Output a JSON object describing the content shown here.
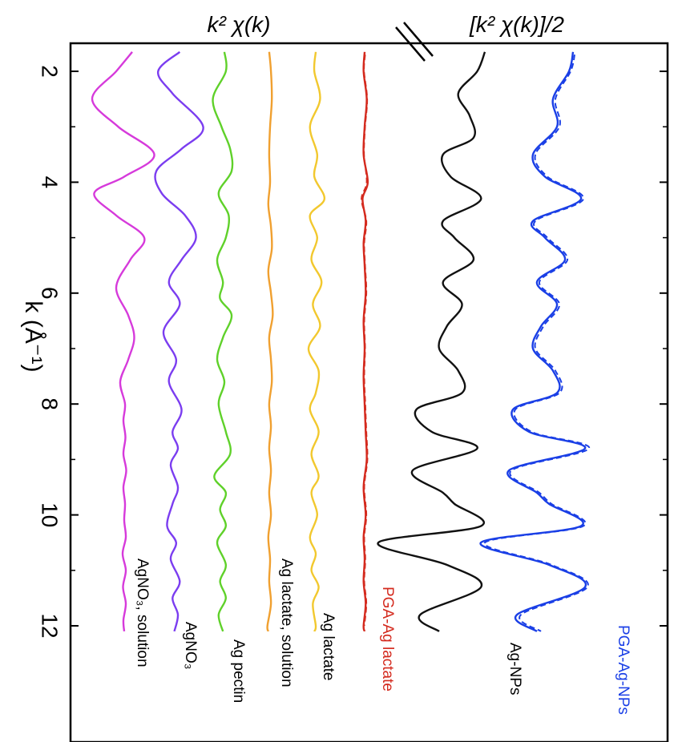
{
  "chart_data": {
    "type": "line",
    "orientation": "vertical-stacked",
    "titles": {
      "left": "k² χ(k)",
      "right": "[k² χ(k)]/2"
    },
    "axis": {
      "label": "k (Å⁻¹)",
      "ticks": [
        "2",
        "4",
        "6",
        "8",
        "10",
        "12"
      ],
      "range": [
        1.5,
        14.2
      ]
    },
    "series": [
      {
        "name": "AgNO₃, solution",
        "color": "#d63adb",
        "solid": [
          [
            1.65,
            0.1
          ],
          [
            2.0,
            -0.3
          ],
          [
            2.5,
            -0.9
          ],
          [
            3.0,
            -0.25
          ],
          [
            3.5,
            0.65
          ],
          [
            3.9,
            -0.1
          ],
          [
            4.2,
            -0.85
          ],
          [
            4.6,
            -0.3
          ],
          [
            5.0,
            0.4
          ],
          [
            5.4,
            0.05
          ],
          [
            5.9,
            -0.3
          ],
          [
            6.4,
            0.0
          ],
          [
            6.8,
            0.15
          ],
          [
            7.2,
            0.0
          ],
          [
            7.6,
            -0.2
          ],
          [
            8.0,
            -0.08
          ],
          [
            8.3,
            -0.12
          ],
          [
            8.6,
            -0.07
          ],
          [
            8.9,
            -0.12
          ],
          [
            9.2,
            -0.05
          ],
          [
            9.5,
            -0.12
          ],
          [
            9.8,
            -0.08
          ],
          [
            10.1,
            -0.1
          ],
          [
            10.4,
            -0.06
          ],
          [
            10.7,
            -0.14
          ],
          [
            11.0,
            -0.06
          ],
          [
            11.3,
            -0.13
          ],
          [
            11.6,
            -0.06
          ],
          [
            11.9,
            -0.12
          ],
          [
            12.1,
            -0.1
          ]
        ]
      },
      {
        "name": "AgNO₃",
        "color": "#7b3df0",
        "solid": [
          [
            1.65,
            0.05
          ],
          [
            2.0,
            -0.55
          ],
          [
            2.4,
            -0.15
          ],
          [
            3.0,
            0.7
          ],
          [
            3.4,
            0.1
          ],
          [
            3.8,
            -0.6
          ],
          [
            4.2,
            -0.45
          ],
          [
            4.6,
            0.2
          ],
          [
            5.0,
            0.5
          ],
          [
            5.4,
            0.1
          ],
          [
            5.8,
            -0.25
          ],
          [
            6.2,
            0.05
          ],
          [
            6.7,
            -0.4
          ],
          [
            7.2,
            -0.05
          ],
          [
            7.6,
            -0.25
          ],
          [
            8.1,
            0.1
          ],
          [
            8.5,
            -0.15
          ],
          [
            8.8,
            0.0
          ],
          [
            9.1,
            -0.2
          ],
          [
            9.5,
            0.0
          ],
          [
            9.8,
            -0.15
          ],
          [
            10.2,
            -0.3
          ],
          [
            10.5,
            -0.05
          ],
          [
            10.8,
            -0.2
          ],
          [
            11.2,
            0.05
          ],
          [
            11.5,
            -0.15
          ],
          [
            11.8,
            0.0
          ],
          [
            12.1,
            -0.1
          ]
        ]
      },
      {
        "name": "Ag pectin",
        "color": "#5fd12a",
        "solid": [
          [
            1.65,
            0.0
          ],
          [
            2.0,
            0.05
          ],
          [
            2.5,
            -0.4
          ],
          [
            3.0,
            -0.1
          ],
          [
            3.4,
            0.2
          ],
          [
            3.8,
            0.25
          ],
          [
            4.2,
            -0.2
          ],
          [
            4.6,
            0.15
          ],
          [
            5.0,
            0.05
          ],
          [
            5.4,
            -0.25
          ],
          [
            5.8,
            -0.05
          ],
          [
            6.1,
            -0.15
          ],
          [
            6.4,
            0.25
          ],
          [
            6.8,
            -0.05
          ],
          [
            7.2,
            -0.25
          ],
          [
            7.6,
            0.0
          ],
          [
            8.0,
            -0.2
          ],
          [
            8.5,
            0.05
          ],
          [
            8.9,
            0.2
          ],
          [
            9.3,
            -0.35
          ],
          [
            9.6,
            0.05
          ],
          [
            9.9,
            -0.15
          ],
          [
            10.2,
            0.05
          ],
          [
            10.5,
            -0.25
          ],
          [
            10.9,
            0.05
          ],
          [
            11.2,
            -0.15
          ],
          [
            11.5,
            0.05
          ],
          [
            11.8,
            -0.2
          ],
          [
            12.1,
            -0.05
          ]
        ]
      },
      {
        "name": "Ag lactate, solution",
        "color": "#f0a030",
        "solid": [
          [
            1.65,
            -0.05
          ],
          [
            2.0,
            0.05
          ],
          [
            2.5,
            0.1
          ],
          [
            3.0,
            0.0
          ],
          [
            3.5,
            -0.05
          ],
          [
            4.0,
            0.0
          ],
          [
            4.4,
            -0.1
          ],
          [
            4.8,
            0.05
          ],
          [
            5.2,
            0.1
          ],
          [
            5.6,
            -0.1
          ],
          [
            6.0,
            0.05
          ],
          [
            6.4,
            0.15
          ],
          [
            6.8,
            -0.05
          ],
          [
            7.2,
            0.05
          ],
          [
            7.6,
            0.1
          ],
          [
            8.0,
            -0.05
          ],
          [
            8.4,
            0.05
          ],
          [
            8.8,
            -0.05
          ],
          [
            9.2,
            0.05
          ],
          [
            9.6,
            -0.05
          ],
          [
            10.0,
            0.05
          ],
          [
            10.4,
            -0.1
          ],
          [
            10.8,
            0.0
          ],
          [
            11.2,
            -0.05
          ],
          [
            11.6,
            0.05
          ],
          [
            12.0,
            -0.15
          ],
          [
            12.1,
            -0.1
          ]
        ]
      },
      {
        "name": "Ag lactate",
        "color": "#f2c82e",
        "solid": [
          [
            1.65,
            0.0
          ],
          [
            2.0,
            -0.05
          ],
          [
            2.5,
            0.15
          ],
          [
            3.0,
            -0.2
          ],
          [
            3.5,
            0.05
          ],
          [
            3.9,
            -0.05
          ],
          [
            4.3,
            0.3
          ],
          [
            4.6,
            -0.2
          ],
          [
            5.0,
            0.05
          ],
          [
            5.4,
            -0.15
          ],
          [
            5.8,
            0.2
          ],
          [
            6.2,
            -0.1
          ],
          [
            6.6,
            0.15
          ],
          [
            7.0,
            -0.25
          ],
          [
            7.4,
            0.1
          ],
          [
            7.8,
            0.0
          ],
          [
            8.1,
            -0.2
          ],
          [
            8.5,
            0.1
          ],
          [
            8.9,
            -0.15
          ],
          [
            9.3,
            0.1
          ],
          [
            9.6,
            -0.15
          ],
          [
            10.0,
            0.05
          ],
          [
            10.4,
            -0.2
          ],
          [
            10.7,
            0.0
          ],
          [
            11.0,
            -0.15
          ],
          [
            11.3,
            0.1
          ],
          [
            11.6,
            -0.1
          ],
          [
            12.0,
            0.0
          ],
          [
            12.1,
            -0.05
          ]
        ]
      },
      {
        "name": "PGA-Ag lactate",
        "color": "#d42a1e",
        "solid": [
          [
            1.65,
            0.0
          ],
          [
            2.0,
            -0.05
          ],
          [
            2.5,
            0.1
          ],
          [
            3.0,
            0.0
          ],
          [
            3.5,
            -0.05
          ],
          [
            4.0,
            0.15
          ],
          [
            4.3,
            -0.1
          ],
          [
            4.7,
            0.05
          ],
          [
            5.1,
            -0.05
          ],
          [
            5.5,
            0.0
          ],
          [
            6.0,
            0.05
          ],
          [
            6.5,
            -0.05
          ],
          [
            7.0,
            0.0
          ],
          [
            7.5,
            -0.05
          ],
          [
            8.0,
            0.0
          ],
          [
            8.5,
            0.05
          ],
          [
            9.0,
            0.1
          ],
          [
            9.5,
            -0.05
          ],
          [
            10.0,
            0.05
          ],
          [
            10.4,
            -0.05
          ],
          [
            10.8,
            0.0
          ],
          [
            11.2,
            -0.05
          ],
          [
            11.6,
            0.05
          ],
          [
            12.0,
            -0.05
          ],
          [
            12.1,
            0.0
          ]
        ],
        "dashed": [
          [
            1.7,
            0.02
          ],
          [
            2.0,
            -0.03
          ],
          [
            2.5,
            0.12
          ],
          [
            3.0,
            0.02
          ],
          [
            3.5,
            -0.03
          ],
          [
            4.0,
            0.1
          ],
          [
            4.3,
            -0.15
          ],
          [
            4.7,
            0.08
          ],
          [
            5.1,
            -0.02
          ],
          [
            5.5,
            0.02
          ],
          [
            6.0,
            0.08
          ],
          [
            6.5,
            -0.02
          ],
          [
            7.0,
            0.02
          ],
          [
            7.5,
            -0.02
          ],
          [
            8.0,
            0.03
          ],
          [
            8.5,
            0.08
          ],
          [
            9.0,
            0.13
          ],
          [
            9.5,
            -0.02
          ],
          [
            10.0,
            0.08
          ],
          [
            10.4,
            -0.02
          ],
          [
            10.8,
            0.03
          ],
          [
            11.2,
            -0.02
          ],
          [
            11.6,
            0.08
          ],
          [
            12.0,
            -0.02
          ]
        ]
      },
      {
        "name": "Ag-NPs",
        "color": "#111111",
        "solid": [
          [
            1.65,
            0.0
          ],
          [
            2.0,
            -0.1
          ],
          [
            2.4,
            -0.35
          ],
          [
            2.8,
            -0.2
          ],
          [
            3.2,
            -0.15
          ],
          [
            3.5,
            -0.55
          ],
          [
            3.9,
            -0.45
          ],
          [
            4.3,
            -0.05
          ],
          [
            4.7,
            -0.55
          ],
          [
            5.0,
            -0.4
          ],
          [
            5.4,
            -0.15
          ],
          [
            5.8,
            -0.55
          ],
          [
            6.2,
            -0.3
          ],
          [
            6.6,
            -0.5
          ],
          [
            7.0,
            -0.6
          ],
          [
            7.4,
            -0.35
          ],
          [
            7.8,
            -0.3
          ],
          [
            8.1,
            -0.9
          ],
          [
            8.5,
            -0.7
          ],
          [
            8.8,
            -0.1
          ],
          [
            9.2,
            -0.95
          ],
          [
            9.6,
            -0.55
          ],
          [
            9.8,
            -0.4
          ],
          [
            10.2,
            -0.05
          ],
          [
            10.5,
            -1.4
          ],
          [
            10.9,
            -0.5
          ],
          [
            11.3,
            -0.05
          ],
          [
            11.8,
            -0.85
          ],
          [
            12.1,
            -0.6
          ]
        ]
      },
      {
        "name": "PGA-Ag-NPs",
        "color": "#1a3fe6",
        "solid": [
          [
            1.65,
            0.0
          ],
          [
            2.0,
            -0.05
          ],
          [
            2.5,
            -0.25
          ],
          [
            3.0,
            -0.2
          ],
          [
            3.5,
            -0.5
          ],
          [
            3.9,
            -0.35
          ],
          [
            4.3,
            0.1
          ],
          [
            4.7,
            -0.5
          ],
          [
            5.0,
            -0.35
          ],
          [
            5.4,
            -0.1
          ],
          [
            5.8,
            -0.45
          ],
          [
            6.2,
            -0.2
          ],
          [
            6.6,
            -0.4
          ],
          [
            7.0,
            -0.5
          ],
          [
            7.4,
            -0.25
          ],
          [
            7.8,
            -0.2
          ],
          [
            8.1,
            -0.75
          ],
          [
            8.5,
            -0.55
          ],
          [
            8.8,
            0.15
          ],
          [
            9.2,
            -0.8
          ],
          [
            9.6,
            -0.45
          ],
          [
            9.8,
            -0.3
          ],
          [
            10.2,
            0.1
          ],
          [
            10.5,
            -1.15
          ],
          [
            10.9,
            -0.3
          ],
          [
            11.3,
            0.15
          ],
          [
            11.8,
            -0.7
          ],
          [
            12.1,
            -0.45
          ]
        ],
        "dashed": [
          [
            1.7,
            0.02
          ],
          [
            2.0,
            -0.03
          ],
          [
            2.5,
            -0.22
          ],
          [
            3.0,
            -0.17
          ],
          [
            3.5,
            -0.47
          ],
          [
            3.9,
            -0.32
          ],
          [
            4.3,
            0.13
          ],
          [
            4.7,
            -0.47
          ],
          [
            5.0,
            -0.32
          ],
          [
            5.4,
            -0.07
          ],
          [
            5.8,
            -0.42
          ],
          [
            6.2,
            -0.17
          ],
          [
            6.6,
            -0.37
          ],
          [
            7.0,
            -0.47
          ],
          [
            7.4,
            -0.22
          ],
          [
            7.8,
            -0.17
          ],
          [
            8.1,
            -0.72
          ],
          [
            8.5,
            -0.52
          ],
          [
            8.8,
            0.2
          ],
          [
            9.2,
            -0.77
          ],
          [
            9.6,
            -0.42
          ],
          [
            9.8,
            -0.27
          ],
          [
            10.2,
            0.13
          ],
          [
            10.5,
            -1.1
          ],
          [
            10.9,
            -0.27
          ],
          [
            11.3,
            0.18
          ],
          [
            11.8,
            -0.65
          ],
          [
            12.1,
            -0.4
          ]
        ]
      }
    ]
  }
}
